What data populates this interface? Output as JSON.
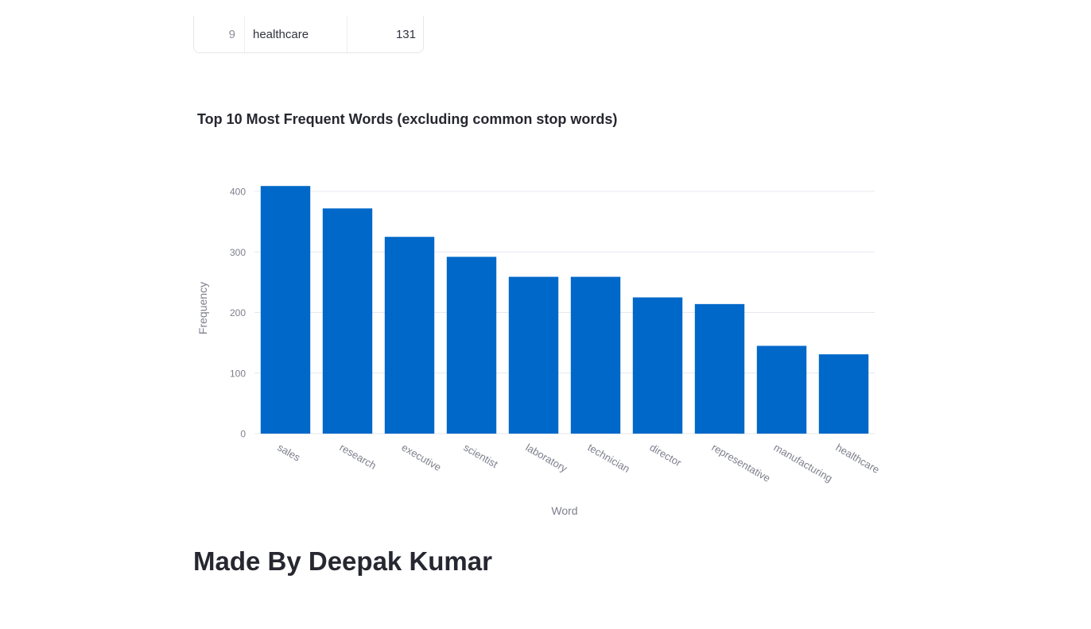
{
  "table": {
    "row": {
      "index": "9",
      "word": "healthcare",
      "count": "131"
    }
  },
  "chart_data": {
    "type": "bar",
    "title": "Top 10 Most Frequent Words (excluding common stop words)",
    "xlabel": "Word",
    "ylabel": "Frequency",
    "categories": [
      "sales",
      "research",
      "executive",
      "scientist",
      "laboratory",
      "technician",
      "director",
      "representative",
      "manufacturing",
      "healthcare"
    ],
    "values": [
      409,
      372,
      325,
      292,
      259,
      259,
      225,
      214,
      145,
      131
    ],
    "ylim": [
      0,
      425
    ],
    "yticks": [
      0,
      100,
      200,
      300,
      400
    ],
    "grid": true,
    "bar_color": "#0068c9"
  },
  "footer": {
    "heading": "Made By Deepak Kumar"
  }
}
